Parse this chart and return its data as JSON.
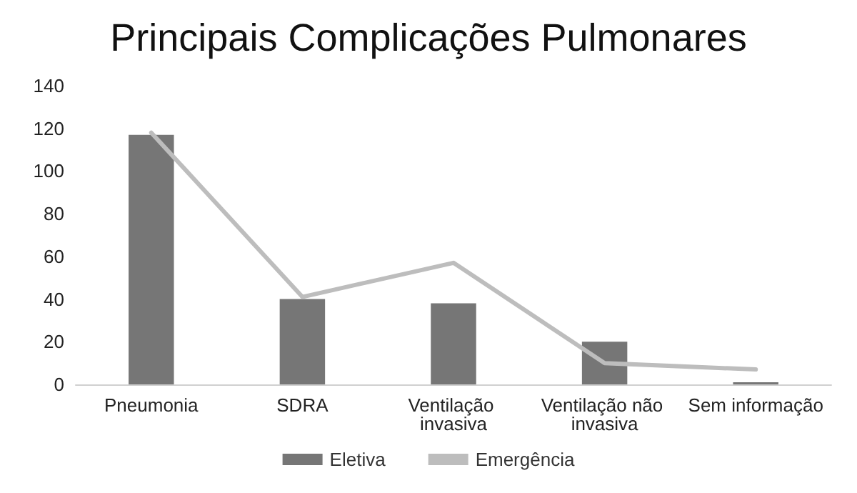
{
  "chart_data": {
    "type": "bar",
    "title": "Principais Complicações Pulmonares",
    "categories": [
      "Pneumonia",
      "SDRA",
      "Ventilação invasiva",
      "Ventilação não invasiva",
      "Sem informação"
    ],
    "series": [
      {
        "name": "Eletiva",
        "color": "#767676",
        "values": [
          117,
          40,
          38,
          20,
          1
        ]
      },
      {
        "name": "Emergência",
        "type": "line",
        "color": "#bdbdbd",
        "values": [
          118,
          41,
          57,
          10,
          7
        ]
      }
    ],
    "ylim": [
      0,
      140
    ],
    "yticks": [
      0,
      20,
      40,
      60,
      80,
      100,
      120,
      140
    ],
    "grid": false,
    "legend": "bottom",
    "marker": "none",
    "line_style": "solid"
  }
}
